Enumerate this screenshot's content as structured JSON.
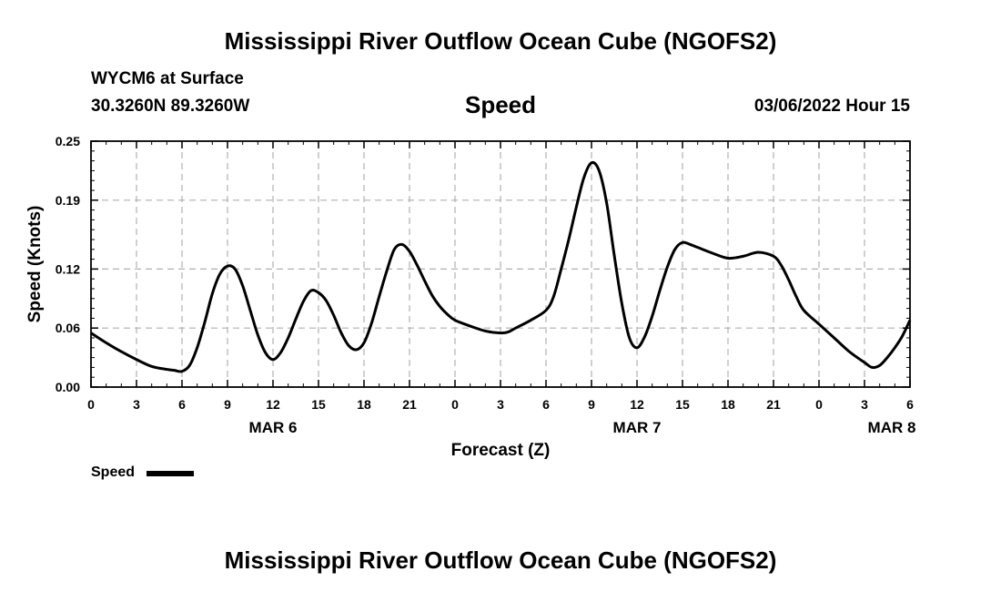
{
  "header": {
    "title": "Mississippi River Outflow Ocean Cube (NGOFS2)",
    "station": "WYCM6 at Surface",
    "coords": "30.3260N  89.3260W",
    "variable": "Speed",
    "date": "03/06/2022 Hour 15"
  },
  "legend": {
    "label": "Speed"
  },
  "footer": {
    "title": "Mississippi River Outflow Ocean Cube (NGOFS2)"
  },
  "colors": {
    "line": "#000000",
    "grid": "#b0b0b0"
  },
  "chart_data": {
    "type": "line",
    "title": "Speed",
    "xlabel": "Forecast (Z)",
    "ylabel": "Speed (Knots)",
    "xlim": [
      0,
      54
    ],
    "ylim": [
      0,
      0.25
    ],
    "y_ticks": [
      0.0,
      0.06,
      0.12,
      0.19,
      0.25
    ],
    "y_tick_labels": [
      "0.00",
      "0.06",
      "0.12",
      "0.19",
      "0.25"
    ],
    "x_ticks": [
      0,
      3,
      6,
      9,
      12,
      15,
      18,
      21,
      24,
      27,
      30,
      33,
      36,
      39,
      42,
      45,
      48,
      51,
      54
    ],
    "x_tick_labels": [
      "0",
      "3",
      "6",
      "9",
      "12",
      "15",
      "18",
      "21",
      "0",
      "3",
      "6",
      "9",
      "12",
      "15",
      "18",
      "21",
      "0",
      "3",
      "6"
    ],
    "day_labels": [
      {
        "x": 12,
        "label": "MAR 6"
      },
      {
        "x": 36,
        "label": "MAR 7"
      },
      {
        "x": 52.8,
        "label": "MAR 8"
      }
    ],
    "grid": true,
    "series": [
      {
        "name": "Speed",
        "x": [
          0,
          1,
          2,
          3,
          4,
          5,
          5.5,
          6,
          6.5,
          7,
          7.5,
          8,
          8.5,
          9,
          9.5,
          10,
          10.5,
          11,
          11.5,
          12,
          12.5,
          13,
          13.5,
          14,
          14.5,
          15,
          15.5,
          16,
          16.5,
          17,
          17.5,
          18,
          18.5,
          19,
          19.5,
          20,
          20.5,
          21,
          21.5,
          22,
          22.5,
          23,
          23.5,
          24,
          25,
          26,
          27,
          27.5,
          28,
          29,
          30,
          30.5,
          31,
          31.5,
          32,
          32.5,
          33,
          33.5,
          34,
          34.5,
          35,
          35.5,
          36,
          36.5,
          37,
          37.5,
          38,
          38.5,
          39,
          39.5,
          40,
          41,
          42,
          43,
          44,
          45,
          45.5,
          46,
          46.5,
          47,
          48,
          49,
          50,
          51,
          51.5,
          52,
          52.5,
          53,
          53.5,
          54
        ],
        "values": [
          0.055,
          0.045,
          0.036,
          0.028,
          0.021,
          0.018,
          0.017,
          0.016,
          0.022,
          0.04,
          0.066,
          0.095,
          0.115,
          0.123,
          0.12,
          0.103,
          0.078,
          0.053,
          0.035,
          0.028,
          0.035,
          0.05,
          0.069,
          0.087,
          0.098,
          0.096,
          0.088,
          0.073,
          0.055,
          0.042,
          0.038,
          0.045,
          0.065,
          0.092,
          0.118,
          0.14,
          0.145,
          0.138,
          0.124,
          0.108,
          0.093,
          0.082,
          0.074,
          0.068,
          0.062,
          0.057,
          0.055,
          0.056,
          0.06,
          0.068,
          0.078,
          0.092,
          0.12,
          0.15,
          0.183,
          0.213,
          0.228,
          0.22,
          0.187,
          0.134,
          0.085,
          0.05,
          0.04,
          0.051,
          0.072,
          0.098,
          0.122,
          0.14,
          0.147,
          0.145,
          0.142,
          0.136,
          0.131,
          0.133,
          0.137,
          0.133,
          0.124,
          0.109,
          0.092,
          0.078,
          0.064,
          0.05,
          0.036,
          0.025,
          0.02,
          0.022,
          0.03,
          0.04,
          0.052,
          0.068
        ]
      }
    ]
  }
}
